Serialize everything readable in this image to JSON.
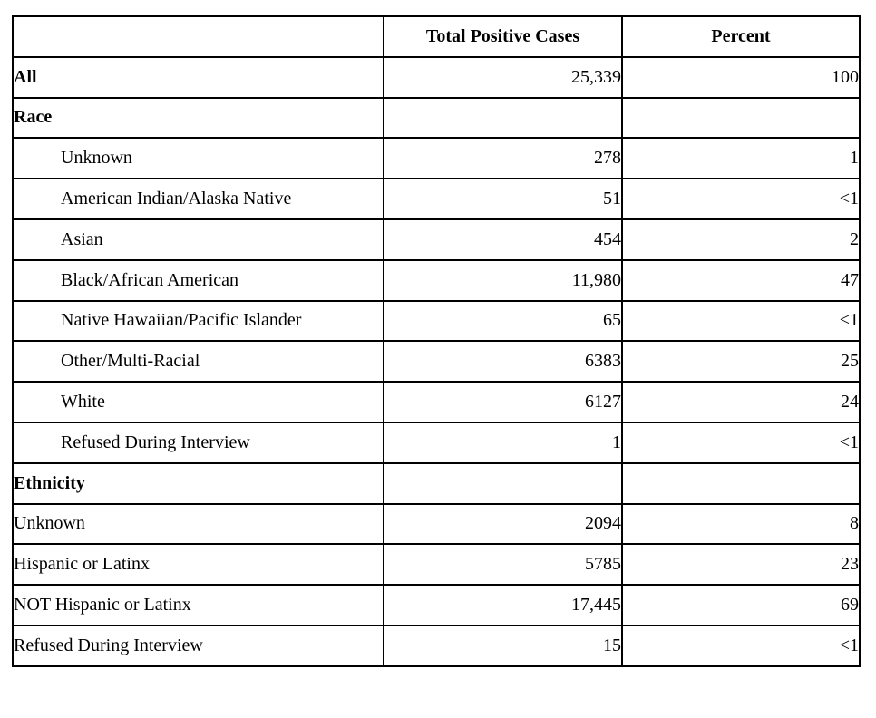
{
  "colors": {
    "background": "#ffffff",
    "border": "#000000",
    "text": "#000000"
  },
  "table": {
    "headers": {
      "label": "",
      "cases": "Total Positive Cases",
      "percent": "Percent"
    },
    "rows": [
      {
        "label": "All",
        "cases": "25,339",
        "percent": "100"
      },
      {
        "label": "Race",
        "cases": "",
        "percent": ""
      },
      {
        "label": "Unknown",
        "cases": "278",
        "percent": "1"
      },
      {
        "label": "American Indian/Alaska Native",
        "cases": "51",
        "percent": "<1"
      },
      {
        "label": "Asian",
        "cases": "454",
        "percent": "2"
      },
      {
        "label": "Black/African American",
        "cases": "11,980",
        "percent": "47"
      },
      {
        "label": "Native Hawaiian/Pacific Islander",
        "cases": "65",
        "percent": "<1"
      },
      {
        "label": "Other/Multi-Racial",
        "cases": "6383",
        "percent": "25"
      },
      {
        "label": "White",
        "cases": "6127",
        "percent": "24"
      },
      {
        "label": "Refused During Interview",
        "cases": "1",
        "percent": "<1"
      },
      {
        "label": "Ethnicity",
        "cases": "",
        "percent": ""
      },
      {
        "label": "Unknown",
        "cases": "2094",
        "percent": "8"
      },
      {
        "label": "Hispanic or Latinx",
        "cases": "5785",
        "percent": "23"
      },
      {
        "label": "NOT Hispanic or Latinx",
        "cases": "17,445",
        "percent": "69"
      },
      {
        "label": "Refused During Interview",
        "cases": "15",
        "percent": "<1"
      }
    ]
  }
}
